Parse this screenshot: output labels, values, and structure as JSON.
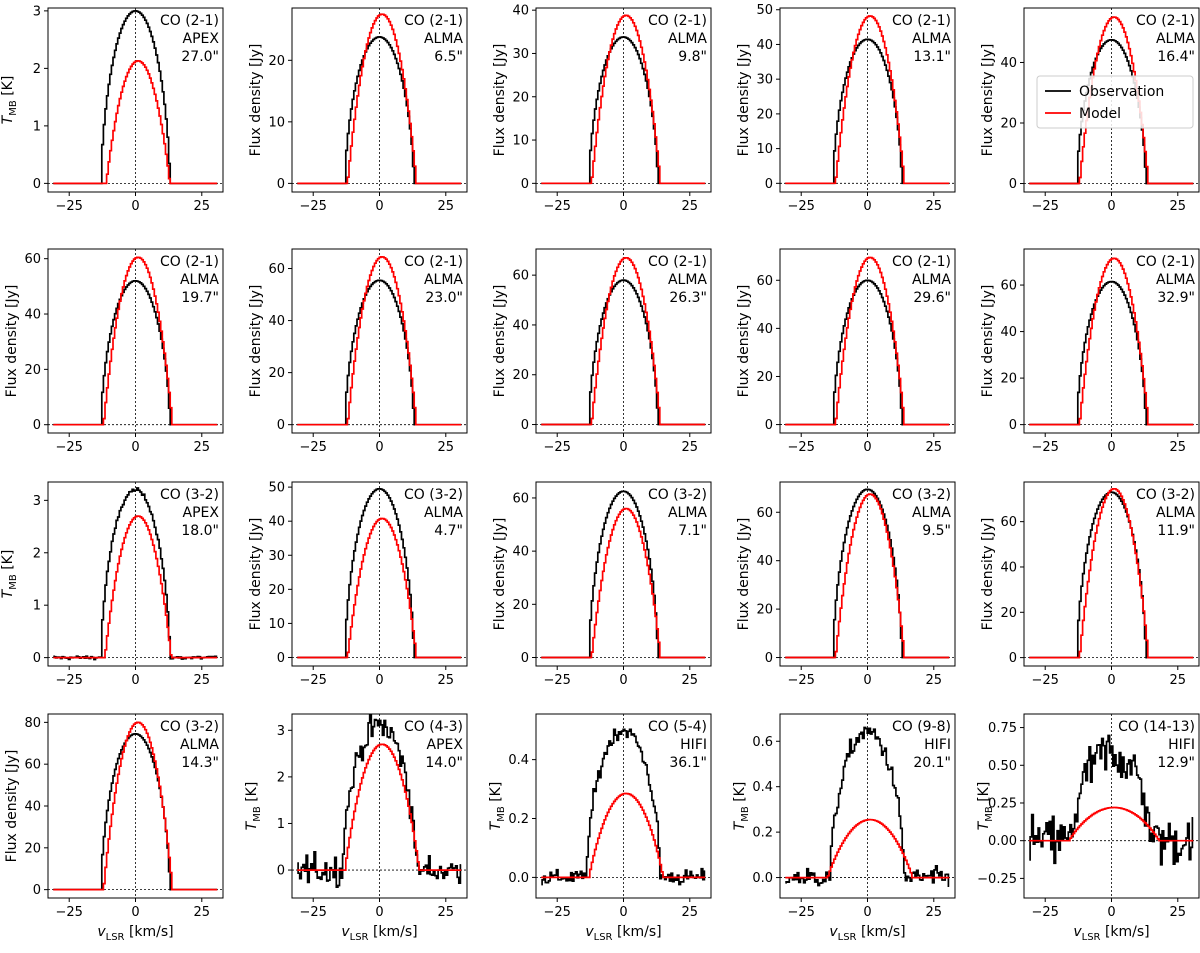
{
  "figure": {
    "x_axis_label": "v",
    "x_axis_label_sub": "LSR",
    "x_axis_unit": " [km/s]",
    "legend": [
      {
        "label": "Observation",
        "color": "#000000"
      },
      {
        "label": "Model",
        "color": "#ff0000"
      }
    ],
    "legend_location": "top-right of panel 5"
  },
  "chart_data": [
    {
      "type": "line",
      "line": "CO (2-1)",
      "telescope": "APEX",
      "beam": "27.0\"",
      "ylabel_kind": "tmb",
      "ylabel": "T",
      "ylabel_sub": "MB",
      "ylabel_unit": " [K]",
      "xlim": [
        -33,
        33
      ],
      "ylim": [
        -0.15,
        3.05
      ],
      "yticks": [
        0,
        1,
        2,
        3
      ],
      "xticks": [
        -25,
        0,
        25
      ],
      "obs_peak": 3.0,
      "obs_halfwidth": 13,
      "obs_center": 0,
      "model_peak": 2.13,
      "model_halfwidth": 12,
      "model_center": 1,
      "noise": 0,
      "show_xlabel": false
    },
    {
      "type": "line",
      "line": "CO (2-1)",
      "telescope": "ALMA",
      "beam": "6.5\"",
      "ylabel_kind": "flux",
      "ylabel": "Flux density [Jy]",
      "xlim": [
        -33,
        33
      ],
      "ylim": [
        -1.4,
        28.5
      ],
      "yticks": [
        0,
        10,
        20
      ],
      "xticks": [
        -25,
        0,
        25
      ],
      "obs_peak": 23.8,
      "obs_halfwidth": 13,
      "obs_center": 0,
      "model_peak": 27.5,
      "model_halfwidth": 13,
      "model_center": 1,
      "noise": 0,
      "show_xlabel": false
    },
    {
      "type": "line",
      "line": "CO (2-1)",
      "telescope": "ALMA",
      "beam": "9.8\"",
      "ylabel_kind": "flux",
      "ylabel": "Flux density [Jy]",
      "xlim": [
        -33,
        33
      ],
      "ylim": [
        -2,
        40.5
      ],
      "yticks": [
        0,
        10,
        20,
        30,
        40
      ],
      "xticks": [
        -25,
        0,
        25
      ],
      "obs_peak": 33.8,
      "obs_halfwidth": 13,
      "obs_center": 0,
      "model_peak": 38.8,
      "model_halfwidth": 13,
      "model_center": 1,
      "noise": 0,
      "show_xlabel": false
    },
    {
      "type": "line",
      "line": "CO (2-1)",
      "telescope": "ALMA",
      "beam": "13.1\"",
      "ylabel_kind": "flux",
      "ylabel": "Flux density [Jy]",
      "xlim": [
        -33,
        33
      ],
      "ylim": [
        -2.5,
        50.5
      ],
      "yticks": [
        0,
        10,
        20,
        30,
        40,
        50
      ],
      "xticks": [
        -25,
        0,
        25
      ],
      "obs_peak": 41.5,
      "obs_halfwidth": 13,
      "obs_center": 0,
      "model_peak": 48.2,
      "model_halfwidth": 13,
      "model_center": 1,
      "noise": 0,
      "show_xlabel": false
    },
    {
      "type": "line",
      "line": "CO (2-1)",
      "telescope": "ALMA",
      "beam": "16.4\"",
      "ylabel_kind": "flux",
      "ylabel": "Flux density [Jy]",
      "xlim": [
        -33,
        33
      ],
      "ylim": [
        -2.8,
        58
      ],
      "yticks": [
        0,
        20,
        40
      ],
      "xticks": [
        -25,
        0,
        25
      ],
      "obs_peak": 47.5,
      "obs_halfwidth": 13,
      "obs_center": 0,
      "model_peak": 55.0,
      "model_halfwidth": 13,
      "model_center": 1,
      "noise": 0,
      "show_xlabel": false,
      "legend": true
    },
    {
      "type": "line",
      "line": "CO (2-1)",
      "telescope": "ALMA",
      "beam": "19.7\"",
      "ylabel_kind": "flux",
      "ylabel": "Flux density [Jy]",
      "xlim": [
        -33,
        33
      ],
      "ylim": [
        -3,
        63.5
      ],
      "yticks": [
        0,
        20,
        40,
        60
      ],
      "xticks": [
        -25,
        0,
        25
      ],
      "obs_peak": 52.0,
      "obs_halfwidth": 13,
      "obs_center": 0,
      "model_peak": 60.5,
      "model_halfwidth": 13,
      "model_center": 1,
      "noise": 0,
      "show_xlabel": false
    },
    {
      "type": "line",
      "line": "CO (2-1)",
      "telescope": "ALMA",
      "beam": "23.0\"",
      "ylabel_kind": "flux",
      "ylabel": "Flux density [Jy]",
      "xlim": [
        -33,
        33
      ],
      "ylim": [
        -3.2,
        67.5
      ],
      "yticks": [
        0,
        20,
        40,
        60
      ],
      "xticks": [
        -25,
        0,
        25
      ],
      "obs_peak": 55.5,
      "obs_halfwidth": 13,
      "obs_center": 0,
      "model_peak": 64.5,
      "model_halfwidth": 13,
      "model_center": 1,
      "noise": 0,
      "show_xlabel": false
    },
    {
      "type": "line",
      "line": "CO (2-1)",
      "telescope": "ALMA",
      "beam": "26.3\"",
      "ylabel_kind": "flux",
      "ylabel": "Flux density [Jy]",
      "xlim": [
        -33,
        33
      ],
      "ylim": [
        -3.4,
        70.5
      ],
      "yticks": [
        0,
        20,
        40,
        60
      ],
      "xticks": [
        -25,
        0,
        25
      ],
      "obs_peak": 58.0,
      "obs_halfwidth": 13,
      "obs_center": 0,
      "model_peak": 67.0,
      "model_halfwidth": 13,
      "model_center": 1,
      "noise": 0,
      "show_xlabel": false
    },
    {
      "type": "line",
      "line": "CO (2-1)",
      "telescope": "ALMA",
      "beam": "29.6\"",
      "ylabel_kind": "flux",
      "ylabel": "Flux density [Jy]",
      "xlim": [
        -33,
        33
      ],
      "ylim": [
        -3.5,
        73
      ],
      "yticks": [
        0,
        20,
        40,
        60
      ],
      "xticks": [
        -25,
        0,
        25
      ],
      "obs_peak": 60.0,
      "obs_halfwidth": 13,
      "obs_center": 0,
      "model_peak": 69.5,
      "model_halfwidth": 13,
      "model_center": 1,
      "noise": 0,
      "show_xlabel": false
    },
    {
      "type": "line",
      "line": "CO (2-1)",
      "telescope": "ALMA",
      "beam": "32.9\"",
      "ylabel_kind": "flux",
      "ylabel": "Flux density [Jy]",
      "xlim": [
        -33,
        33
      ],
      "ylim": [
        -3.6,
        75.5
      ],
      "yticks": [
        0,
        20,
        40,
        60
      ],
      "xticks": [
        -25,
        0,
        25
      ],
      "obs_peak": 61.5,
      "obs_halfwidth": 13,
      "obs_center": 0,
      "model_peak": 71.5,
      "model_halfwidth": 13,
      "model_center": 1,
      "noise": 0,
      "show_xlabel": false
    },
    {
      "type": "line",
      "line": "CO (3-2)",
      "telescope": "APEX",
      "beam": "18.0\"",
      "ylabel_kind": "tmb",
      "ylabel": "T",
      "ylabel_sub": "MB",
      "ylabel_unit": " [K]",
      "xlim": [
        -33,
        33
      ],
      "ylim": [
        -0.16,
        3.35
      ],
      "yticks": [
        0,
        1,
        2,
        3
      ],
      "xticks": [
        -25,
        0,
        25
      ],
      "obs_peak": 3.2,
      "obs_halfwidth": 13,
      "obs_center": 0,
      "model_peak": 2.7,
      "model_halfwidth": 12.5,
      "model_center": 1,
      "noise": 0.025,
      "show_xlabel": false
    },
    {
      "type": "line",
      "line": "CO (3-2)",
      "telescope": "ALMA",
      "beam": "4.7\"",
      "ylabel_kind": "flux",
      "ylabel": "Flux density [Jy]",
      "xlim": [
        -33,
        33
      ],
      "ylim": [
        -2.5,
        51.5
      ],
      "yticks": [
        0,
        10,
        20,
        30,
        40,
        50
      ],
      "xticks": [
        -25,
        0,
        25
      ],
      "obs_peak": 49.5,
      "obs_halfwidth": 13,
      "obs_center": 0,
      "model_peak": 40.8,
      "model_halfwidth": 13,
      "model_center": 1,
      "noise": 0,
      "show_xlabel": false
    },
    {
      "type": "line",
      "line": "CO (3-2)",
      "telescope": "ALMA",
      "beam": "7.1\"",
      "ylabel_kind": "flux",
      "ylabel": "Flux density [Jy]",
      "xlim": [
        -33,
        33
      ],
      "ylim": [
        -3.2,
        66
      ],
      "yticks": [
        0,
        20,
        40,
        60
      ],
      "xticks": [
        -25,
        0,
        25
      ],
      "obs_peak": 62.5,
      "obs_halfwidth": 13,
      "obs_center": 0,
      "model_peak": 56.0,
      "model_halfwidth": 13,
      "model_center": 1,
      "noise": 0,
      "show_xlabel": false
    },
    {
      "type": "line",
      "line": "CO (3-2)",
      "telescope": "ALMA",
      "beam": "9.5\"",
      "ylabel_kind": "flux",
      "ylabel": "Flux density [Jy]",
      "xlim": [
        -33,
        33
      ],
      "ylim": [
        -3.5,
        72.5
      ],
      "yticks": [
        0,
        20,
        40,
        60
      ],
      "xticks": [
        -25,
        0,
        25
      ],
      "obs_peak": 69.5,
      "obs_halfwidth": 13,
      "obs_center": 0,
      "model_peak": 67.5,
      "model_halfwidth": 13,
      "model_center": 1,
      "noise": 0,
      "show_xlabel": false
    },
    {
      "type": "line",
      "line": "CO (3-2)",
      "telescope": "ALMA",
      "beam": "11.9\"",
      "ylabel_kind": "flux",
      "ylabel": "Flux density [Jy]",
      "xlim": [
        -33,
        33
      ],
      "ylim": [
        -3.7,
        77.5
      ],
      "yticks": [
        0,
        20,
        40,
        60
      ],
      "xticks": [
        -25,
        0,
        25
      ],
      "obs_peak": 73.0,
      "obs_halfwidth": 13,
      "obs_center": 0,
      "model_peak": 74.5,
      "model_halfwidth": 13,
      "model_center": 1,
      "noise": 0,
      "show_xlabel": false
    },
    {
      "type": "line",
      "line": "CO (3-2)",
      "telescope": "ALMA",
      "beam": "14.3\"",
      "ylabel_kind": "flux",
      "ylabel": "Flux density [Jy]",
      "xlim": [
        -33,
        33
      ],
      "ylim": [
        -4,
        84
      ],
      "yticks": [
        0,
        20,
        40,
        60,
        80
      ],
      "xticks": [
        -25,
        0,
        25
      ],
      "obs_peak": 74.5,
      "obs_halfwidth": 13,
      "obs_center": 0,
      "model_peak": 80.0,
      "model_halfwidth": 13,
      "model_center": 1,
      "noise": 0,
      "show_xlabel": true
    },
    {
      "type": "line",
      "line": "CO (4-3)",
      "telescope": "APEX",
      "beam": "14.0\"",
      "ylabel_kind": "tmb",
      "ylabel": "T",
      "ylabel_sub": "MB",
      "ylabel_unit": " [K]",
      "xlim": [
        -33,
        33
      ],
      "ylim": [
        -0.6,
        3.35
      ],
      "yticks": [
        0,
        1,
        2,
        3
      ],
      "xticks": [
        -25,
        0,
        25
      ],
      "obs_peak": 3.1,
      "obs_halfwidth": 14,
      "obs_center": 0,
      "model_peak": 2.7,
      "model_halfwidth": 14,
      "model_center": 1,
      "noise": 0.22,
      "show_xlabel": true
    },
    {
      "type": "line",
      "line": "CO (5-4)",
      "telescope": "HIFI",
      "beam": "36.1\"",
      "ylabel_kind": "tmb",
      "ylabel": "T",
      "ylabel_sub": "MB",
      "ylabel_unit": " [K]",
      "xlim": [
        -33,
        33
      ],
      "ylim": [
        -0.07,
        0.555
      ],
      "yticks": [
        0.0,
        0.2,
        0.4
      ],
      "xticks": [
        -25,
        0,
        25
      ],
      "obs_peak": 0.5,
      "obs_halfwidth": 14,
      "obs_center": 0,
      "model_peak": 0.285,
      "model_halfwidth": 14,
      "model_center": 1,
      "noise": 0.018,
      "show_xlabel": true
    },
    {
      "type": "line",
      "line": "CO (9-8)",
      "telescope": "HIFI",
      "beam": "20.1\"",
      "ylabel_kind": "tmb",
      "ylabel": "T",
      "ylabel_sub": "MB",
      "ylabel_unit": " [K]",
      "xlim": [
        -33,
        33
      ],
      "ylim": [
        -0.09,
        0.72
      ],
      "yticks": [
        0.0,
        0.2,
        0.4,
        0.6
      ],
      "xticks": [
        -25,
        0,
        25
      ],
      "obs_peak": 0.64,
      "obs_halfwidth": 14,
      "obs_center": 0,
      "model_peak": 0.255,
      "model_halfwidth": 16,
      "model_center": 1,
      "noise": 0.03,
      "show_xlabel": true
    },
    {
      "type": "line",
      "line": "CO (14-13)",
      "telescope": "HIFI",
      "beam": "12.9\"",
      "ylabel_kind": "tmb",
      "ylabel": "T",
      "ylabel_sub": "MB",
      "ylabel_unit": " [K]",
      "xlim": [
        -33,
        33
      ],
      "ylim": [
        -0.38,
        0.84
      ],
      "yticks": [
        -0.25,
        0.0,
        0.25,
        0.5,
        0.75
      ],
      "xticks": [
        -25,
        0,
        25
      ],
      "obs_peak": 0.58,
      "obs_halfwidth": 15,
      "obs_center": 0,
      "model_peak": 0.22,
      "model_halfwidth": 17,
      "model_center": 1,
      "noise": 0.12,
      "show_xlabel": true
    }
  ]
}
